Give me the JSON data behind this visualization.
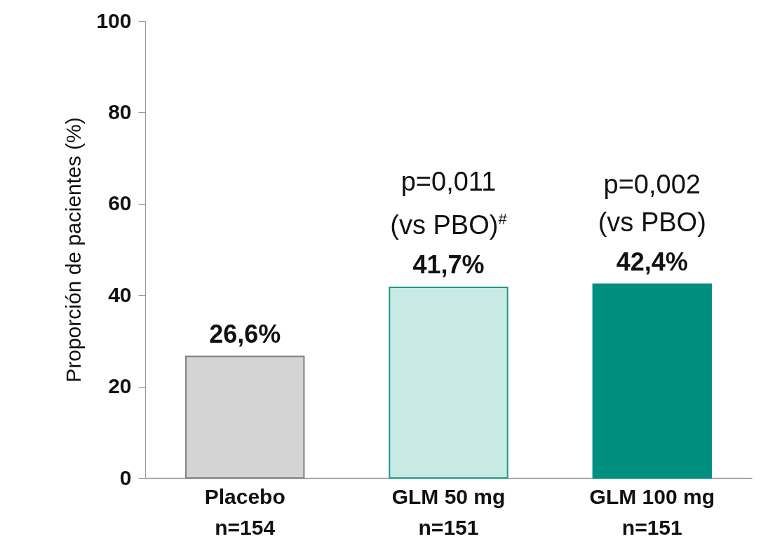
{
  "chart_data": {
    "type": "bar",
    "ylabel": "Proporción de pacientes (%)",
    "categories": [
      "Placebo\nn=154",
      "GLM 50 mg\nn=151",
      "GLM 100 mg\nn=151"
    ],
    "values": [
      26.6,
      41.7,
      42.4
    ],
    "value_labels": [
      "26,6%",
      "41,7%",
      "42,4%"
    ],
    "colors": [
      "#d4d4d4",
      "#c9ebe5",
      "#008f7e"
    ],
    "ylim": [
      0,
      100
    ],
    "yticks": [
      0,
      20,
      40,
      60,
      80,
      100
    ],
    "grid": false,
    "legend": false,
    "annotations": [
      {
        "text": "p=0,011\n(vs PBO)$^{#}$",
        "x": "GLM 50 mg\nn=151",
        "y": 41.7
      },
      {
        "text": "p=0,002\n(vs PBO)",
        "x": "GLM 100 mg\nn=151",
        "y": 42.4
      }
    ]
  }
}
